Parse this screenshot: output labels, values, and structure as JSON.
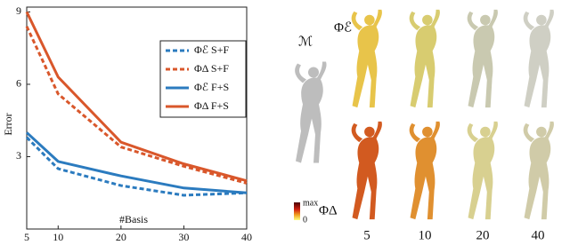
{
  "chart_data": {
    "type": "line",
    "y_label": "Error",
    "x_label": "#Basis",
    "x": [
      5,
      10,
      20,
      30,
      40
    ],
    "series": [
      {
        "name": "Φℰ S+F",
        "color": "#2b7bbf",
        "dash": true,
        "values": [
          3.8,
          2.5,
          1.8,
          1.4,
          1.5
        ]
      },
      {
        "name": "ΦΔ S+F",
        "color": "#d9572b",
        "dash": true,
        "values": [
          8.4,
          5.6,
          3.4,
          2.6,
          1.9
        ]
      },
      {
        "name": "Φℰ F+S",
        "color": "#2b7bbf",
        "dash": false,
        "values": [
          4.0,
          2.8,
          2.2,
          1.7,
          1.5
        ]
      },
      {
        "name": "ΦΔ F+S",
        "color": "#d9572b",
        "dash": false,
        "values": [
          9.0,
          6.3,
          3.6,
          2.7,
          2.0
        ]
      }
    ],
    "xlim": [
      5,
      40
    ],
    "xticks": [
      5,
      10,
      20,
      30,
      40
    ],
    "ylim": [
      0,
      9.2
    ],
    "yticks": [
      3,
      6,
      9
    ],
    "legend": "upper right"
  },
  "figure": {
    "mesh_label": "ℳ",
    "row_labels": [
      "Φℰ",
      "ΦΔ"
    ],
    "colorbar": [
      "max",
      "0"
    ],
    "column_labels": [
      "5",
      "10",
      "20",
      "40"
    ]
  }
}
